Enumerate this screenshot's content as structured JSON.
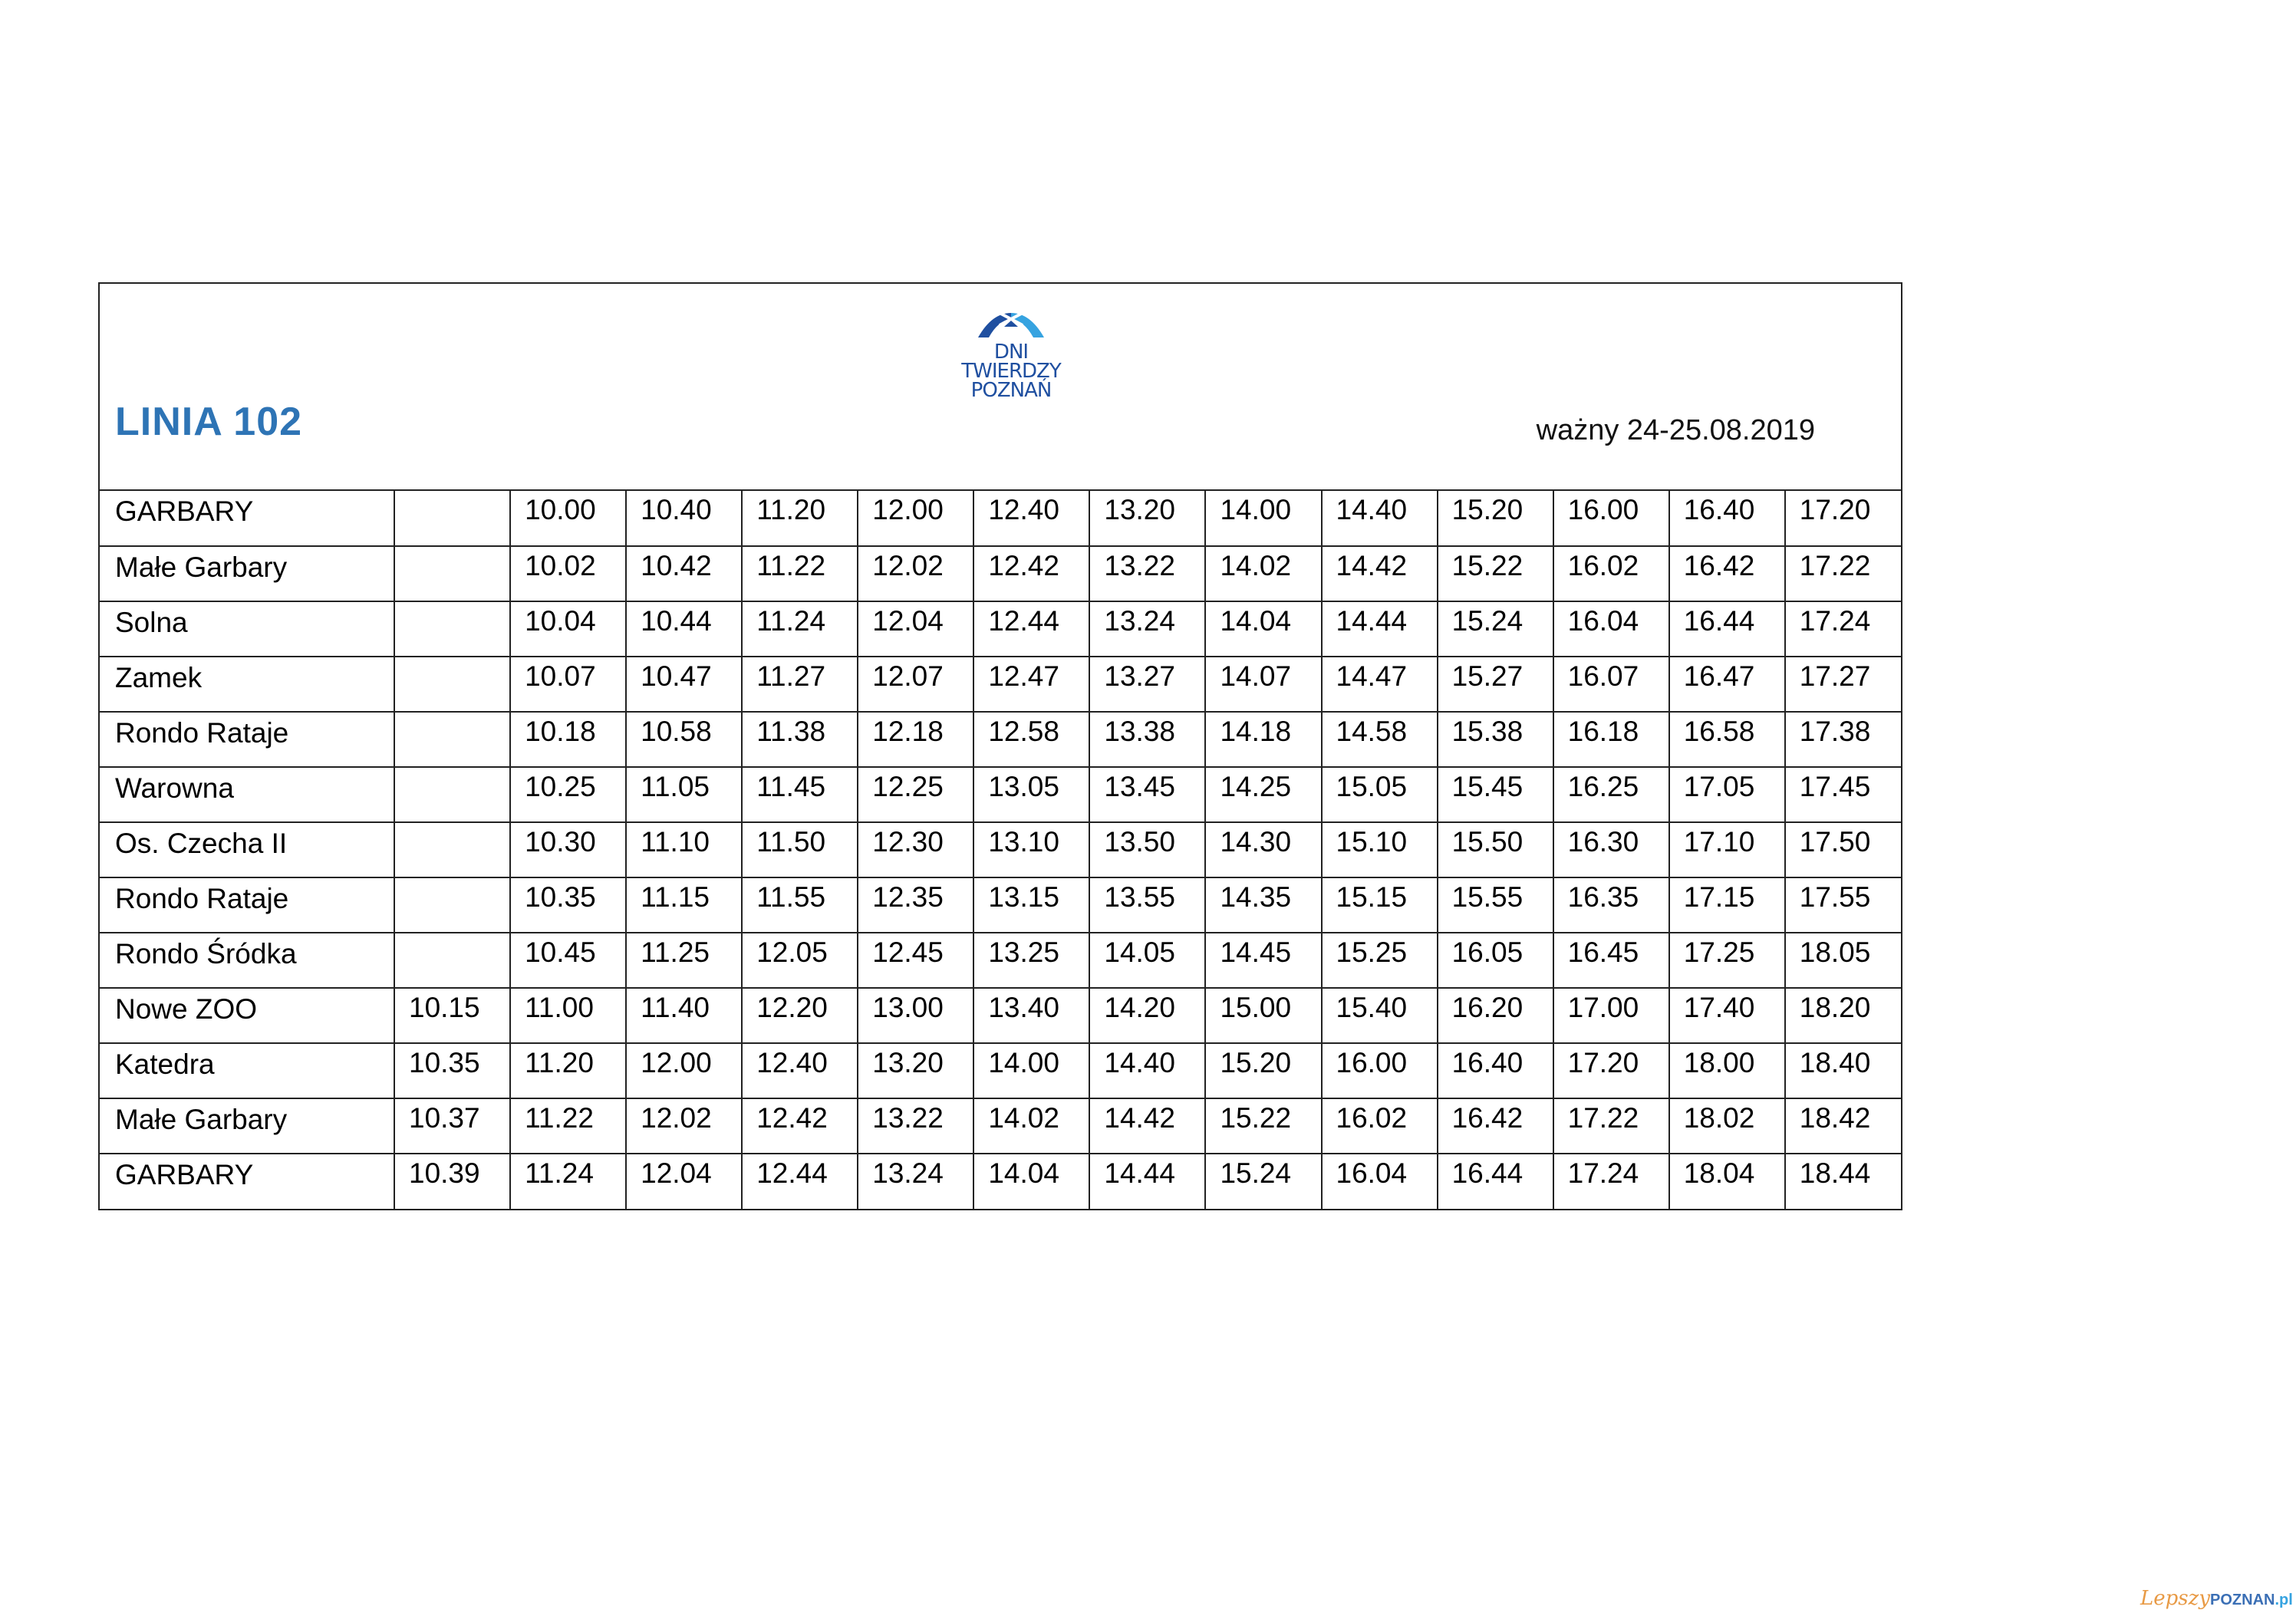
{
  "header": {
    "title": "LINIA 102",
    "valid": "ważny 24-25.08.2019",
    "logo": {
      "line1": "DNI",
      "line2": "TWIERDZY",
      "line3": "POZNAŃ",
      "colors": [
        "#1f4fa0",
        "#36a3e0"
      ]
    }
  },
  "title_color": "#2E74B5",
  "rows": [
    {
      "stop": "GARBARY",
      "times": [
        "",
        "10.00",
        "10.40",
        "11.20",
        "12.00",
        "12.40",
        "13.20",
        "14.00",
        "14.40",
        "15.20",
        "16.00",
        "16.40",
        "17.20"
      ]
    },
    {
      "stop": "Małe Garbary",
      "times": [
        "",
        "10.02",
        "10.42",
        "11.22",
        "12.02",
        "12.42",
        "13.22",
        "14.02",
        "14.42",
        "15.22",
        "16.02",
        "16.42",
        "17.22"
      ]
    },
    {
      "stop": "Solna",
      "times": [
        "",
        "10.04",
        "10.44",
        "11.24",
        "12.04",
        "12.44",
        "13.24",
        "14.04",
        "14.44",
        "15.24",
        "16.04",
        "16.44",
        "17.24"
      ]
    },
    {
      "stop": "Zamek",
      "times": [
        "",
        "10.07",
        "10.47",
        "11.27",
        "12.07",
        "12.47",
        "13.27",
        "14.07",
        "14.47",
        "15.27",
        "16.07",
        "16.47",
        "17.27"
      ]
    },
    {
      "stop": "Rondo Rataje",
      "times": [
        "",
        "10.18",
        "10.58",
        "11.38",
        "12.18",
        "12.58",
        "13.38",
        "14.18",
        "14.58",
        "15.38",
        "16.18",
        "16.58",
        "17.38"
      ]
    },
    {
      "stop": "Warowna",
      "times": [
        "",
        "10.25",
        "11.05",
        "11.45",
        "12.25",
        "13.05",
        "13.45",
        "14.25",
        "15.05",
        "15.45",
        "16.25",
        "17.05",
        "17.45"
      ]
    },
    {
      "stop": "Os. Czecha II",
      "times": [
        "",
        "10.30",
        "11.10",
        "11.50",
        "12.30",
        "13.10",
        "13.50",
        "14.30",
        "15.10",
        "15.50",
        "16.30",
        "17.10",
        "17.50"
      ]
    },
    {
      "stop": "Rondo Rataje",
      "times": [
        "",
        "10.35",
        "11.15",
        "11.55",
        "12.35",
        "13.15",
        "13.55",
        "14.35",
        "15.15",
        "15.55",
        "16.35",
        "17.15",
        "17.55"
      ]
    },
    {
      "stop": "Rondo Śródka",
      "times": [
        "",
        "10.45",
        "11.25",
        "12.05",
        "12.45",
        "13.25",
        "14.05",
        "14.45",
        "15.25",
        "16.05",
        "16.45",
        "17.25",
        "18.05"
      ]
    },
    {
      "stop": "Nowe ZOO",
      "times": [
        "10.15",
        "11.00",
        "11.40",
        "12.20",
        "13.00",
        "13.40",
        "14.20",
        "15.00",
        "15.40",
        "16.20",
        "17.00",
        "17.40",
        "18.20"
      ]
    },
    {
      "stop": "Katedra",
      "times": [
        "10.35",
        "11.20",
        "12.00",
        "12.40",
        "13.20",
        "14.00",
        "14.40",
        "15.20",
        "16.00",
        "16.40",
        "17.20",
        "18.00",
        "18.40"
      ]
    },
    {
      "stop": "Małe Garbary",
      "times": [
        "10.37",
        "11.22",
        "12.02",
        "12.42",
        "13.22",
        "14.02",
        "14.42",
        "15.22",
        "16.02",
        "16.42",
        "17.22",
        "18.02",
        "18.42"
      ]
    },
    {
      "stop": "GARBARY",
      "times": [
        "10.39",
        "11.24",
        "12.04",
        "12.44",
        "13.24",
        "14.04",
        "14.44",
        "15.24",
        "16.04",
        "16.44",
        "17.24",
        "18.04",
        "18.44"
      ]
    }
  ],
  "watermark": {
    "part1": "Lepszy",
    "part2": "POZNAN",
    "part3": ".pl"
  }
}
